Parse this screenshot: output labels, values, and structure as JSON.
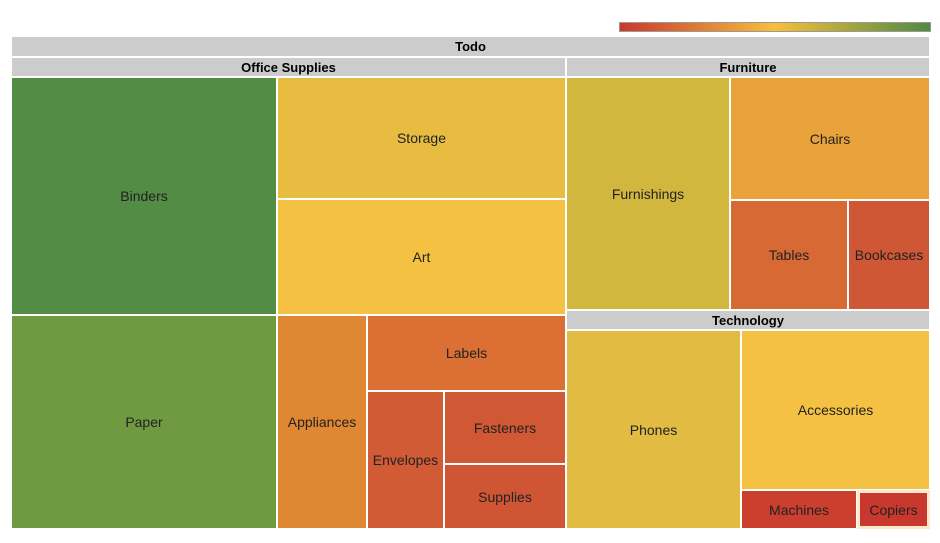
{
  "chart_data": {
    "type": "treemap",
    "root": "Todo",
    "color_scale": {
      "low": "#c9382e",
      "mid": "#f6bf3a",
      "high": "#4e8b44"
    },
    "groups": [
      {
        "name": "Office Supplies",
        "children": [
          {
            "name": "Binders",
            "color": "#528c45"
          },
          {
            "name": "Storage",
            "color": "#e8bc41"
          },
          {
            "name": "Art",
            "color": "#f5c142"
          },
          {
            "name": "Paper",
            "color": "#709a42"
          },
          {
            "name": "Appliances",
            "color": "#df8733"
          },
          {
            "name": "Labels",
            "color": "#db6f34"
          },
          {
            "name": "Envelopes",
            "color": "#d15b34"
          },
          {
            "name": "Fasteners",
            "color": "#d05834"
          },
          {
            "name": "Supplies",
            "color": "#cf5535"
          }
        ]
      },
      {
        "name": "Furniture",
        "children": [
          {
            "name": "Furnishings",
            "color": "#d1b73e"
          },
          {
            "name": "Chairs",
            "color": "#e9a13a"
          },
          {
            "name": "Tables",
            "color": "#d76934"
          },
          {
            "name": "Bookcases",
            "color": "#cf5735"
          }
        ]
      },
      {
        "name": "Technology",
        "children": [
          {
            "name": "Phones",
            "color": "#e1bb42"
          },
          {
            "name": "Accessories",
            "color": "#f5c142"
          },
          {
            "name": "Machines",
            "color": "#cb3f2f"
          },
          {
            "name": "Copiers",
            "color": "#c9382e",
            "selected": true
          }
        ]
      }
    ]
  }
}
